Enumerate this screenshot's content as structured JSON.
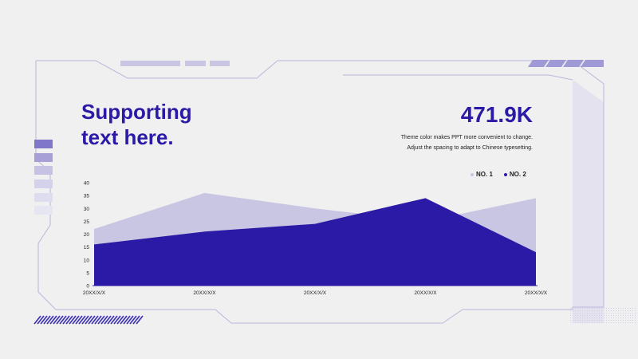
{
  "heading": {
    "line1": "Supporting",
    "line2": "text here."
  },
  "metric": {
    "value": "471.9K"
  },
  "description": [
    "Theme color makes PPT more convenient to change.",
    "Adjust the spacing to adapt to Chinese typesetting."
  ],
  "colors": {
    "accent": "#2b1aa6",
    "light": "#c9c6e3",
    "frame": "#b9b6da"
  },
  "chart_data": {
    "type": "area",
    "categories": [
      "20XX/X/X",
      "20XX/X/X",
      "20XX/X/X",
      "20XX/X/X",
      "20XX/X/X"
    ],
    "series": [
      {
        "name": "NO. 1",
        "color": "#c9c6e3",
        "values": [
          22,
          36,
          30,
          25,
          34
        ]
      },
      {
        "name": "NO. 2",
        "color": "#2b1aa6",
        "values": [
          16,
          21,
          24,
          34,
          13
        ]
      }
    ],
    "y_ticks": [
      0,
      5,
      10,
      15,
      20,
      25,
      30,
      35,
      40
    ],
    "ylim": [
      0,
      40
    ],
    "grid": false,
    "legend_position": "top-right"
  }
}
